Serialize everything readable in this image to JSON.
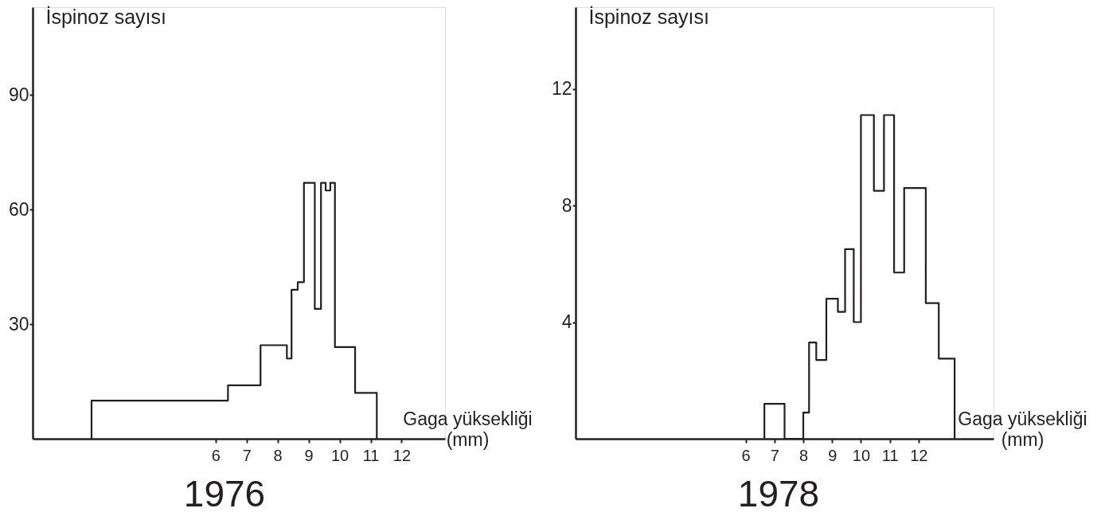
{
  "chart_data": [
    {
      "type": "histogram",
      "title": "1976",
      "xlabel": "Gaga yüksekliği\n(mm)",
      "ylabel": "İspinoz sayısı",
      "color": "#231f20",
      "grid": false,
      "bins": [
        2.0,
        6.4,
        7.45,
        8.3,
        8.45,
        8.65,
        8.85,
        9.2,
        9.4,
        9.55,
        9.7,
        9.85,
        10.5,
        11.2
      ],
      "values": [
        10,
        14,
        24.5,
        21,
        39,
        41,
        67,
        34,
        67,
        65,
        67,
        24,
        12
      ],
      "xlim": [
        0.1,
        13.4
      ],
      "ylim": [
        0,
        113
      ],
      "xticks": [
        6,
        7,
        8,
        9,
        10,
        11,
        12
      ],
      "yticks": [
        30,
        60,
        90
      ]
    },
    {
      "type": "histogram",
      "title": "1978",
      "xlabel": "Gaga yüksekliği\n(mm)",
      "ylabel": "İspinoz sayısı",
      "color": "#231f20",
      "grid": false,
      "bins": [
        6.65,
        7.35,
        8.0,
        8.2,
        8.45,
        8.8,
        9.2,
        9.45,
        9.75,
        10.0,
        10.45,
        10.8,
        11.15,
        11.5,
        12.25,
        12.7,
        13.25
      ],
      "values": [
        1.2,
        0,
        0.9,
        3.3,
        2.7,
        4.8,
        4.35,
        6.5,
        4.0,
        11.1,
        8.5,
        11.1,
        5.7,
        8.6,
        4.65,
        2.75
      ],
      "xlim": [
        0.1,
        14.6
      ],
      "ylim": [
        0,
        14.8
      ],
      "xticks": [
        6,
        7,
        8,
        9,
        10,
        11,
        12
      ],
      "yticks": [
        4,
        8,
        12
      ]
    }
  ]
}
